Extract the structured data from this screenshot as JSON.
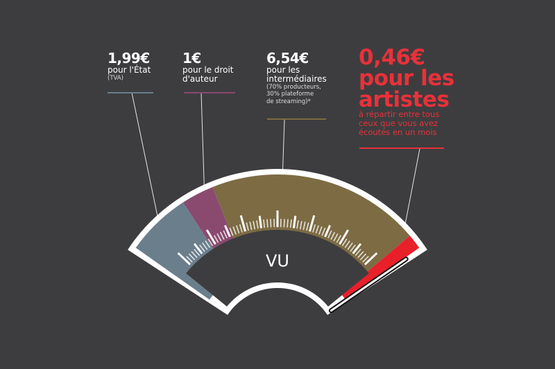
{
  "chart_data": {
    "type": "gauge",
    "title": "",
    "center_label": "VU",
    "categories": [
      "pour l'État",
      "pour le droit d'auteur",
      "pour les intermédiaires",
      "pour les artistes"
    ],
    "values": [
      1.99,
      1,
      6.54,
      0.46
    ],
    "value_labels": [
      "1,99€",
      "1€",
      "6,54€",
      "0,46€"
    ],
    "notes": [
      "(TVA)",
      "",
      "(70% producteurs, 30% plateforme de streaming)*",
      "à répartir entre tous ceux que vous avez écoutés en un mois"
    ],
    "colors": [
      "#6b7e8c",
      "#8a4a6f",
      "#7d6b43",
      "#e8202a"
    ],
    "needle_value": 9.99
  },
  "labels": {
    "etat": {
      "amount": "1,99€",
      "desc": "pour l'État",
      "note": "(TVA)"
    },
    "auteur": {
      "amount": "1€",
      "desc1": "pour le droit",
      "desc2": "d'auteur"
    },
    "inter": {
      "amount": "6,54€",
      "desc1": "pour les",
      "desc2": "intermédiaires",
      "note1": "(70% producteurs,",
      "note2": "30% plateforme",
      "note3": "de streaming)*"
    },
    "artistes": {
      "amount": "0,46€",
      "desc1": "pour les",
      "desc2": "artistes",
      "note1": "à répartir entre tous",
      "note2": "ceux que vous avez",
      "note3": "écoutés en un mois"
    }
  }
}
